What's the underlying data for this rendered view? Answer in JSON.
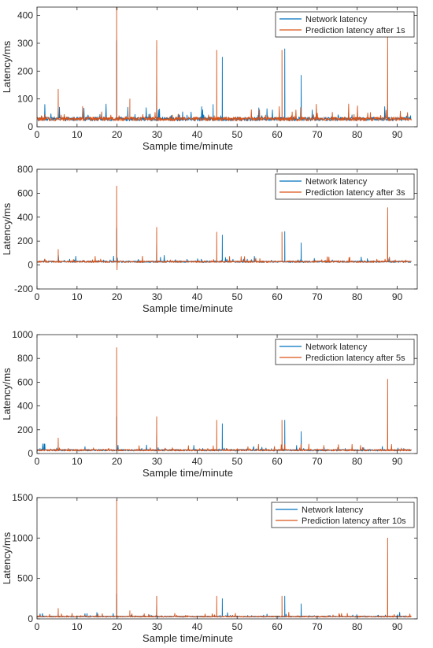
{
  "chart_data": [
    {
      "type": "line",
      "xlabel": "Sample time/minute",
      "ylabel": "Latency/ms",
      "xlim": [
        0,
        95
      ],
      "ylim": [
        0,
        430
      ],
      "xticks": [
        0,
        10,
        20,
        30,
        40,
        50,
        60,
        70,
        80,
        90
      ],
      "yticks": [
        0,
        100,
        200,
        300,
        400
      ],
      "legend_position": "top-right",
      "baseline": 28,
      "spikes": {
        "Network latency": [
          [
            5.3,
            70
          ],
          [
            19.9,
            310
          ],
          [
            29.9,
            275
          ],
          [
            44.0,
            80
          ],
          [
            46.3,
            250
          ],
          [
            61.9,
            280
          ],
          [
            66.0,
            185
          ],
          [
            87.6,
            80
          ]
        ],
        "Prediction latency after 1s": [
          [
            5.3,
            135
          ],
          [
            19.9,
            430
          ],
          [
            23.2,
            100
          ],
          [
            29.9,
            310
          ],
          [
            44.9,
            275
          ],
          [
            61.2,
            275
          ],
          [
            87.6,
            325
          ]
        ]
      },
      "series": [
        {
          "name": "Network latency",
          "color": "#0072BD"
        },
        {
          "name": "Prediction latency after 1s",
          "color": "#D95319"
        }
      ]
    },
    {
      "type": "line",
      "xlabel": "Sample time/minute",
      "ylabel": "Latency/ms",
      "xlim": [
        0,
        95
      ],
      "ylim": [
        -200,
        800
      ],
      "xticks": [
        0,
        10,
        20,
        30,
        40,
        50,
        60,
        70,
        80,
        90
      ],
      "yticks": [
        -200,
        0,
        200,
        400,
        600,
        800
      ],
      "legend_position": "top-right",
      "baseline": 28,
      "spikes": {
        "Network latency": [
          [
            5.3,
            70
          ],
          [
            19.9,
            310
          ],
          [
            29.9,
            275
          ],
          [
            46.3,
            250
          ],
          [
            61.9,
            280
          ],
          [
            66.0,
            185
          ]
        ],
        "Prediction latency after 3s": [
          [
            5.3,
            130
          ],
          [
            19.9,
            660
          ],
          [
            20.0,
            -40
          ],
          [
            29.9,
            315
          ],
          [
            44.9,
            275
          ],
          [
            61.2,
            275
          ],
          [
            87.6,
            480
          ]
        ]
      },
      "series": [
        {
          "name": "Network latency",
          "color": "#0072BD"
        },
        {
          "name": "Prediction latency after 3s",
          "color": "#D95319"
        }
      ]
    },
    {
      "type": "line",
      "xlabel": "Sample time/minute",
      "ylabel": "Latency/ms",
      "xlim": [
        0,
        95
      ],
      "ylim": [
        0,
        1000
      ],
      "xticks": [
        0,
        10,
        20,
        30,
        40,
        50,
        60,
        70,
        80,
        90
      ],
      "yticks": [
        0,
        200,
        400,
        600,
        800,
        1000
      ],
      "legend_position": "top-right",
      "baseline": 28,
      "spikes": {
        "Network latency": [
          [
            5.3,
            70
          ],
          [
            19.9,
            310
          ],
          [
            29.9,
            275
          ],
          [
            46.3,
            250
          ],
          [
            61.9,
            280
          ],
          [
            66.0,
            185
          ]
        ],
        "Prediction latency after 5s": [
          [
            5.3,
            130
          ],
          [
            19.9,
            890
          ],
          [
            29.9,
            310
          ],
          [
            44.9,
            280
          ],
          [
            61.2,
            280
          ],
          [
            87.6,
            625
          ]
        ]
      },
      "series": [
        {
          "name": "Network latency",
          "color": "#0072BD"
        },
        {
          "name": "Prediction latency after 5s",
          "color": "#D95319"
        }
      ]
    },
    {
      "type": "line",
      "xlabel": "Sample time/minute",
      "ylabel": "Latency/ms",
      "xlim": [
        0,
        95
      ],
      "ylim": [
        0,
        1500
      ],
      "xticks": [
        0,
        10,
        20,
        30,
        40,
        50,
        60,
        70,
        80,
        90
      ],
      "yticks": [
        0,
        500,
        1000,
        1500
      ],
      "legend_position": "top-right",
      "baseline": 28,
      "spikes": {
        "Network latency": [
          [
            5.3,
            70
          ],
          [
            19.9,
            310
          ],
          [
            29.9,
            275
          ],
          [
            46.3,
            250
          ],
          [
            61.9,
            280
          ],
          [
            66.0,
            185
          ]
        ],
        "Prediction latency after 10s": [
          [
            5.3,
            130
          ],
          [
            19.9,
            1470
          ],
          [
            23.2,
            100
          ],
          [
            29.9,
            280
          ],
          [
            44.9,
            280
          ],
          [
            61.2,
            280
          ],
          [
            87.6,
            1000
          ]
        ]
      },
      "series": [
        {
          "name": "Network latency",
          "color": "#0072BD"
        },
        {
          "name": "Prediction latency after 10s",
          "color": "#D95319"
        }
      ]
    }
  ]
}
